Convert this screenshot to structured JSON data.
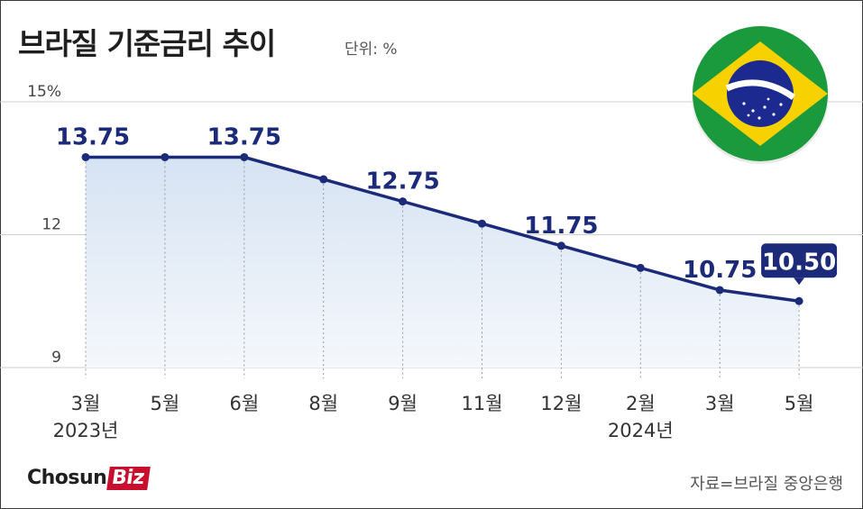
{
  "header": {
    "title": "브라질 기준금리 추이",
    "unit": "단위: %"
  },
  "footer": {
    "source": "자료=브라질 중앙은행",
    "logo_text": "Chosun",
    "logo_badge": "Biz"
  },
  "flag": {
    "icon": "brazil-flag-icon",
    "colors": [
      "#1a9a3c",
      "#f7d100",
      "#1c2a8f"
    ]
  },
  "colors": {
    "line": "#1c2a7a",
    "fill_top": "#d6e3f3",
    "fill_bottom": "#f5f8fc",
    "grid": "#cfcfcf",
    "callout_bg": "#1c2a7a"
  },
  "chart_data": {
    "type": "area",
    "title": "브라질 기준금리 추이",
    "ylabel": "단위: %",
    "ylim": [
      9,
      15
    ],
    "yticks": [
      9,
      12,
      15
    ],
    "ytick_labels": [
      "9",
      "12",
      "15%"
    ],
    "grid": true,
    "categories": [
      "3월",
      "5월",
      "6월",
      "8월",
      "9월",
      "11월",
      "12월",
      "2월",
      "3월",
      "5월"
    ],
    "year_labels": [
      "2023년",
      "",
      "",
      "",
      "",
      "",
      "",
      "2024년",
      "",
      ""
    ],
    "values": [
      13.75,
      13.75,
      13.75,
      13.25,
      12.75,
      12.25,
      11.75,
      11.25,
      10.75,
      10.5
    ],
    "data_labels": [
      "13.75",
      "",
      "13.75",
      "",
      "12.75",
      "",
      "11.75",
      "",
      "10.75",
      "10.50"
    ],
    "highlight": "10.50"
  }
}
